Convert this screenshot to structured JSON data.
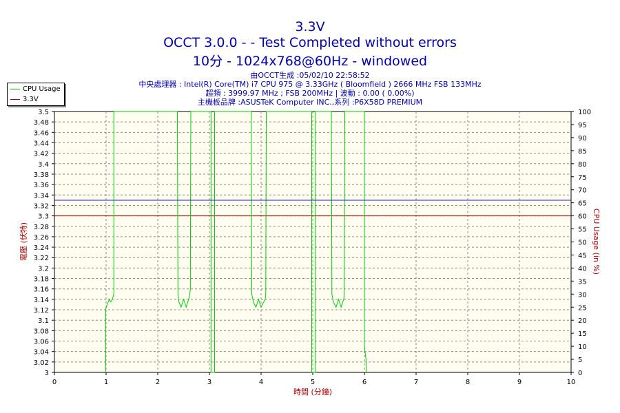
{
  "header": {
    "title": "3.3V",
    "line2": "OCCT 3.0.0 -  - Test Completed without errors",
    "line3": "10分 - 1024x768@60Hz - windowed",
    "info": [
      "由OCCT生成 :05/02/10 22:58:52",
      "中央處理器 : Intel(R) Core(TM) i7 CPU 975 @ 3.33GHz ( Bloomfield ) 2666 MHz FSB 133MHz",
      "超頻 : 3999.97 MHz ; FSB 200MHz | 波動 : 0.00 ( 0.00%)",
      "主機板品牌 :ASUSTeK Computer INC.,系列 :P6X58D PREMIUM"
    ]
  },
  "legend": [
    {
      "label": "CPU Usage",
      "color": "#00cc00"
    },
    {
      "label": "3.3V",
      "color": "#aa0000"
    }
  ],
  "chart_data": {
    "type": "line",
    "xlabel": "時間 (分鐘)",
    "ylabel": "電壓 (伏特)",
    "y2label": "CPU Usage (in %)",
    "xlim": [
      0,
      10
    ],
    "ylim": [
      3,
      3.5
    ],
    "y2lim": [
      0,
      100
    ],
    "x_ticks": [
      0,
      1,
      2,
      3,
      4,
      5,
      6,
      7,
      8,
      9,
      10
    ],
    "y_ticks": [
      "3",
      "3.02",
      "3.04",
      "3.06",
      "3.08",
      "3.1",
      "3.12",
      "3.14",
      "3.16",
      "3.18",
      "3.2",
      "3.22",
      "3.24",
      "3.26",
      "3.28",
      "3.3",
      "3.32",
      "3.34",
      "3.36",
      "3.38",
      "3.4",
      "3.42",
      "3.44",
      "3.46",
      "3.48",
      "3.5"
    ],
    "y2_ticks": [
      0,
      5,
      10,
      15,
      20,
      25,
      30,
      35,
      40,
      45,
      50,
      55,
      60,
      65,
      70,
      75,
      80,
      85,
      90,
      95,
      100
    ],
    "grid": true,
    "legend_position": "top-left",
    "series": [
      {
        "name": "3.3V",
        "axis": "left",
        "color": "#aa0000",
        "x": [
          0,
          10
        ],
        "y": [
          3.3,
          3.3
        ]
      },
      {
        "name": "CPU Usage",
        "axis": "right",
        "color": "#00cc00",
        "x": [
          0.99,
          0.99,
          1.02,
          1.06,
          1.09,
          1.12,
          1.15,
          1.15,
          2.38,
          2.39,
          2.41,
          2.45,
          2.5,
          2.55,
          2.58,
          2.6,
          2.62,
          2.63,
          2.64,
          3.03,
          3.03,
          3.1,
          3.1,
          3.81,
          3.82,
          3.85,
          3.9,
          3.95,
          4.0,
          4.05,
          4.08,
          4.09,
          4.1,
          4.98,
          4.98,
          5.05,
          5.05,
          5.36,
          5.37,
          5.4,
          5.45,
          5.5,
          5.55,
          5.58,
          5.6,
          5.61,
          5.62,
          6.0,
          6.0,
          6.03,
          6.03,
          6.04
        ],
        "y": [
          0,
          24,
          26,
          28,
          27,
          28,
          30,
          100,
          100,
          30,
          27,
          25,
          28,
          25,
          27,
          28,
          30,
          32,
          100,
          100,
          0,
          0,
          100,
          100,
          30,
          27,
          25,
          28,
          25,
          27,
          28,
          30,
          100,
          100,
          0,
          0,
          100,
          100,
          30,
          27,
          25,
          28,
          25,
          27,
          28,
          30,
          100,
          100,
          10,
          5,
          5,
          0
        ]
      },
      {
        "name": "",
        "axis": "left",
        "color": "#0000aa",
        "x": [
          0,
          10
        ],
        "y": [
          3.33,
          3.33
        ]
      }
    ]
  }
}
